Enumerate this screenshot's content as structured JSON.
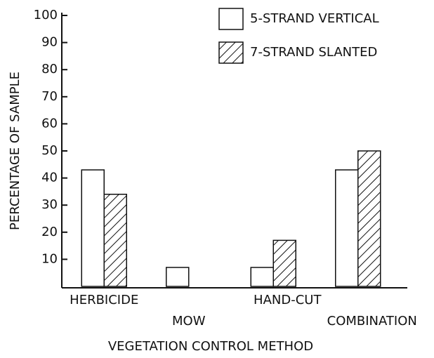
{
  "chart_data": {
    "type": "bar",
    "categories": [
      "HERBICIDE",
      "MOW",
      "HAND-CUT",
      "COMBINATION"
    ],
    "series": [
      {
        "name": "5-STRAND VERTICAL",
        "color": "#ffffff",
        "values": [
          43,
          7,
          7,
          43
        ]
      },
      {
        "name": "7-STRAND SLANTED",
        "color": "hatch",
        "values": [
          34,
          0,
          17,
          50
        ]
      }
    ],
    "ylabel": "PERCENTAGE OF SAMPLE",
    "xlabel": "VEGETATION CONTROL METHOD",
    "ylim": [
      0,
      100
    ],
    "yticks": [
      10,
      20,
      30,
      40,
      50,
      60,
      70,
      80,
      90,
      100
    ],
    "grid": false,
    "legend": "upper right"
  }
}
